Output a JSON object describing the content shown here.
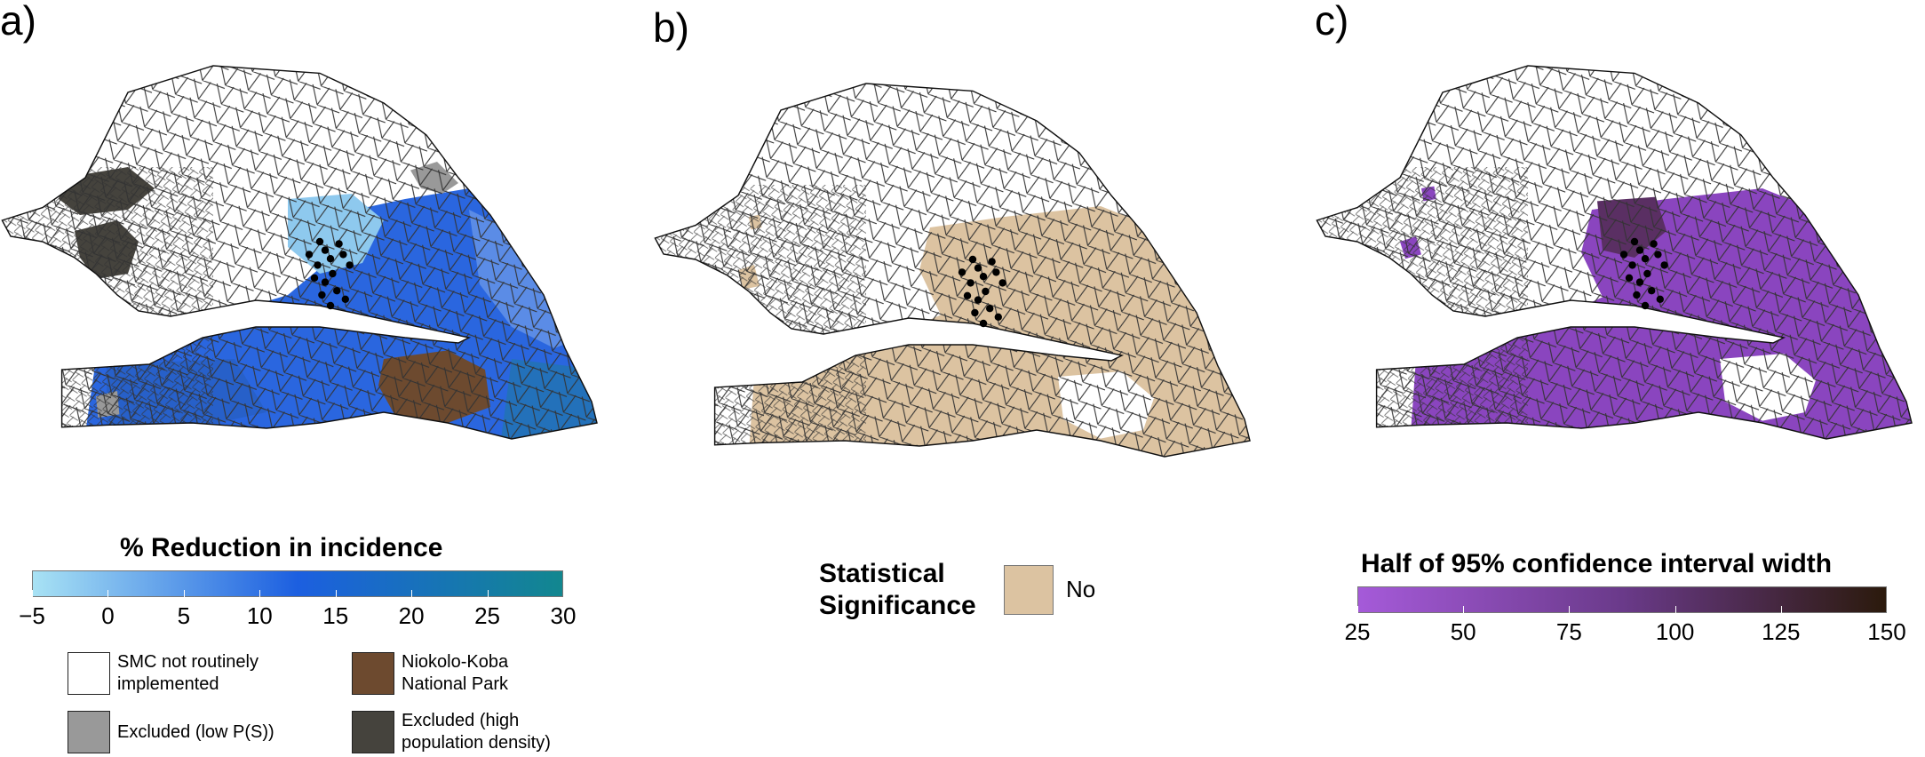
{
  "panels": [
    {
      "label": "a)"
    },
    {
      "label": "b)"
    },
    {
      "label": "c)"
    }
  ],
  "panel_a": {
    "colorbar": {
      "title": "% Reduction in incidence",
      "ticks": [
        "−5",
        "0",
        "5",
        "10",
        "15",
        "20",
        "25",
        "30"
      ],
      "range": [
        -5,
        30
      ],
      "colors": [
        "#a8e2f4",
        "#1c5fe0",
        "#12878f"
      ]
    },
    "legend": [
      {
        "label": "SMC not routinely implemented",
        "color": "#ffffff"
      },
      {
        "label": "Niokolo-Koba National Park",
        "color": "#6d4a2f"
      },
      {
        "label": "Excluded (low P(S))",
        "color": "#999999"
      },
      {
        "label": "Excluded (high population density)",
        "color": "#45433d"
      }
    ]
  },
  "panel_b": {
    "title": "Statistical Significance",
    "legend": [
      {
        "label": "No",
        "color": "#dcc3a1"
      }
    ]
  },
  "panel_c": {
    "colorbar": {
      "title": "Half of 95% confidence interval width",
      "ticks": [
        "25",
        "50",
        "75",
        "100",
        "125",
        "150"
      ],
      "range": [
        25,
        150
      ],
      "colors": [
        "#a55ad9",
        "#6a3a8a",
        "#2b1a0c"
      ]
    }
  }
}
